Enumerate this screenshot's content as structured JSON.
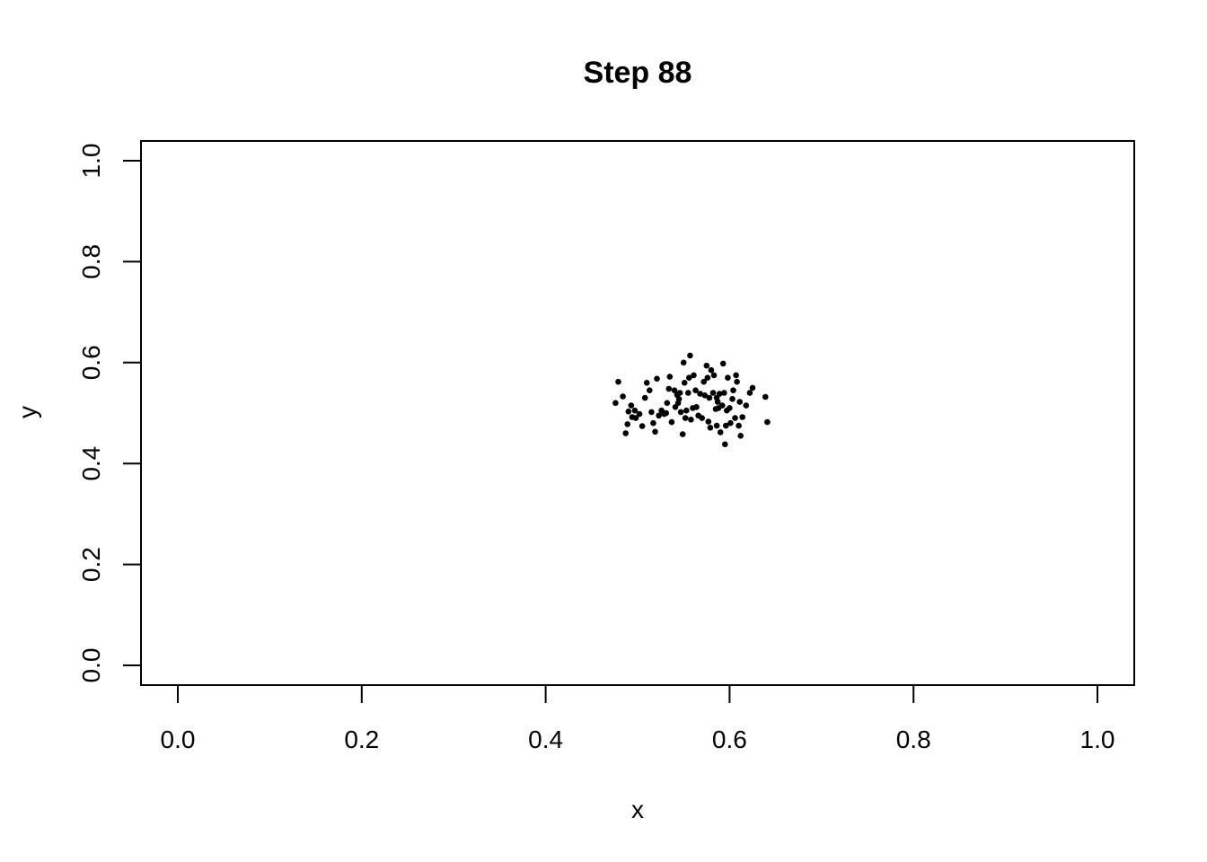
{
  "chart_data": {
    "type": "scatter",
    "title": "Step 88",
    "xlabel": "x",
    "ylabel": "y",
    "xlim": [
      0,
      1
    ],
    "ylim": [
      0,
      1
    ],
    "xticks": [
      "0.0",
      "0.2",
      "0.4",
      "0.6",
      "0.8",
      "1.0"
    ],
    "yticks": [
      "0.0",
      "0.2",
      "0.4",
      "0.6",
      "0.8",
      "1.0"
    ],
    "grid": false,
    "legend": "none",
    "point_color": "#000000",
    "points": [
      [
        0.476,
        0.52
      ],
      [
        0.479,
        0.562
      ],
      [
        0.484,
        0.533
      ],
      [
        0.487,
        0.46
      ],
      [
        0.489,
        0.478
      ],
      [
        0.49,
        0.503
      ],
      [
        0.493,
        0.515
      ],
      [
        0.494,
        0.492
      ],
      [
        0.497,
        0.505
      ],
      [
        0.502,
        0.498
      ],
      [
        0.505,
        0.474
      ],
      [
        0.508,
        0.53
      ],
      [
        0.51,
        0.56
      ],
      [
        0.513,
        0.545
      ],
      [
        0.515,
        0.502
      ],
      [
        0.517,
        0.48
      ],
      [
        0.519,
        0.463
      ],
      [
        0.521,
        0.568
      ],
      [
        0.523,
        0.495
      ],
      [
        0.526,
        0.505
      ],
      [
        0.529,
        0.498
      ],
      [
        0.532,
        0.52
      ],
      [
        0.534,
        0.548
      ],
      [
        0.535,
        0.572
      ],
      [
        0.537,
        0.482
      ],
      [
        0.54,
        0.545
      ],
      [
        0.541,
        0.512
      ],
      [
        0.543,
        0.536
      ],
      [
        0.545,
        0.528
      ],
      [
        0.546,
        0.54
      ],
      [
        0.547,
        0.502
      ],
      [
        0.549,
        0.458
      ],
      [
        0.55,
        0.6
      ],
      [
        0.551,
        0.56
      ],
      [
        0.552,
        0.49
      ],
      [
        0.553,
        0.505
      ],
      [
        0.555,
        0.54
      ],
      [
        0.556,
        0.57
      ],
      [
        0.557,
        0.614
      ],
      [
        0.558,
        0.487
      ],
      [
        0.561,
        0.575
      ],
      [
        0.563,
        0.545
      ],
      [
        0.564,
        0.512
      ],
      [
        0.566,
        0.495
      ],
      [
        0.568,
        0.538
      ],
      [
        0.57,
        0.49
      ],
      [
        0.573,
        0.535
      ],
      [
        0.575,
        0.594
      ],
      [
        0.576,
        0.57
      ],
      [
        0.577,
        0.483
      ],
      [
        0.578,
        0.53
      ],
      [
        0.579,
        0.471
      ],
      [
        0.58,
        0.585
      ],
      [
        0.582,
        0.54
      ],
      [
        0.583,
        0.575
      ],
      [
        0.585,
        0.508
      ],
      [
        0.586,
        0.475
      ],
      [
        0.587,
        0.522
      ],
      [
        0.588,
        0.51
      ],
      [
        0.589,
        0.538
      ],
      [
        0.59,
        0.462
      ],
      [
        0.592,
        0.515
      ],
      [
        0.593,
        0.598
      ],
      [
        0.594,
        0.54
      ],
      [
        0.595,
        0.438
      ],
      [
        0.596,
        0.475
      ],
      [
        0.597,
        0.505
      ],
      [
        0.598,
        0.57
      ],
      [
        0.6,
        0.51
      ],
      [
        0.601,
        0.48
      ],
      [
        0.603,
        0.528
      ],
      [
        0.604,
        0.545
      ],
      [
        0.606,
        0.49
      ],
      [
        0.607,
        0.575
      ],
      [
        0.608,
        0.562
      ],
      [
        0.61,
        0.475
      ],
      [
        0.611,
        0.522
      ],
      [
        0.612,
        0.455
      ],
      [
        0.614,
        0.492
      ],
      [
        0.618,
        0.515
      ],
      [
        0.622,
        0.54
      ],
      [
        0.625,
        0.55
      ],
      [
        0.639,
        0.532
      ],
      [
        0.641,
        0.482
      ],
      [
        0.498,
        0.49
      ],
      [
        0.56,
        0.51
      ],
      [
        0.531,
        0.5
      ],
      [
        0.586,
        0.53
      ],
      [
        0.572,
        0.562
      ],
      [
        0.544,
        0.52
      ]
    ]
  }
}
